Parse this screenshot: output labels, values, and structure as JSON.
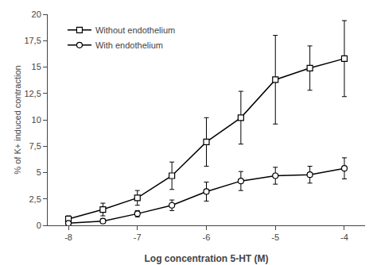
{
  "chart_data": {
    "type": "line",
    "xlabel": "Log concentration 5-HT (M)",
    "ylabel": "% of K+ induced contraction",
    "x": [
      -8,
      -7.5,
      -7,
      -6.5,
      -6,
      -5.5,
      -5,
      -4.5,
      -4
    ],
    "series": [
      {
        "name": "Without endothelium",
        "color": "#000000",
        "marker": "square",
        "values": [
          0.6,
          1.5,
          2.6,
          4.7,
          7.9,
          10.2,
          13.8,
          14.9,
          15.8
        ],
        "errors": [
          0.3,
          0.6,
          0.7,
          1.3,
          2.3,
          2.5,
          4.2,
          2.1,
          3.6
        ]
      },
      {
        "name": "With endothelium",
        "color": "#000000",
        "marker": "circle",
        "values": [
          0.2,
          0.4,
          1.1,
          1.9,
          3.2,
          4.2,
          4.7,
          4.8,
          5.4
        ],
        "errors": [
          0.1,
          0.2,
          0.3,
          0.5,
          0.9,
          0.9,
          0.8,
          0.8,
          1.0
        ]
      }
    ],
    "xlim": [
      -8.3,
      -3.7
    ],
    "xticks": [
      -8,
      -7,
      -6,
      -5,
      -4
    ],
    "ylim": [
      0,
      20
    ],
    "yticks": [
      0,
      {
        "value": 2.5,
        "label": "2,5"
      },
      5,
      {
        "value": 7.5,
        "label": "7,5"
      },
      10,
      {
        "value": 12.5,
        "label": "12,5"
      },
      15,
      {
        "value": 17.5,
        "label": "17,5"
      },
      20
    ],
    "grid": false,
    "legend": "upper left"
  }
}
